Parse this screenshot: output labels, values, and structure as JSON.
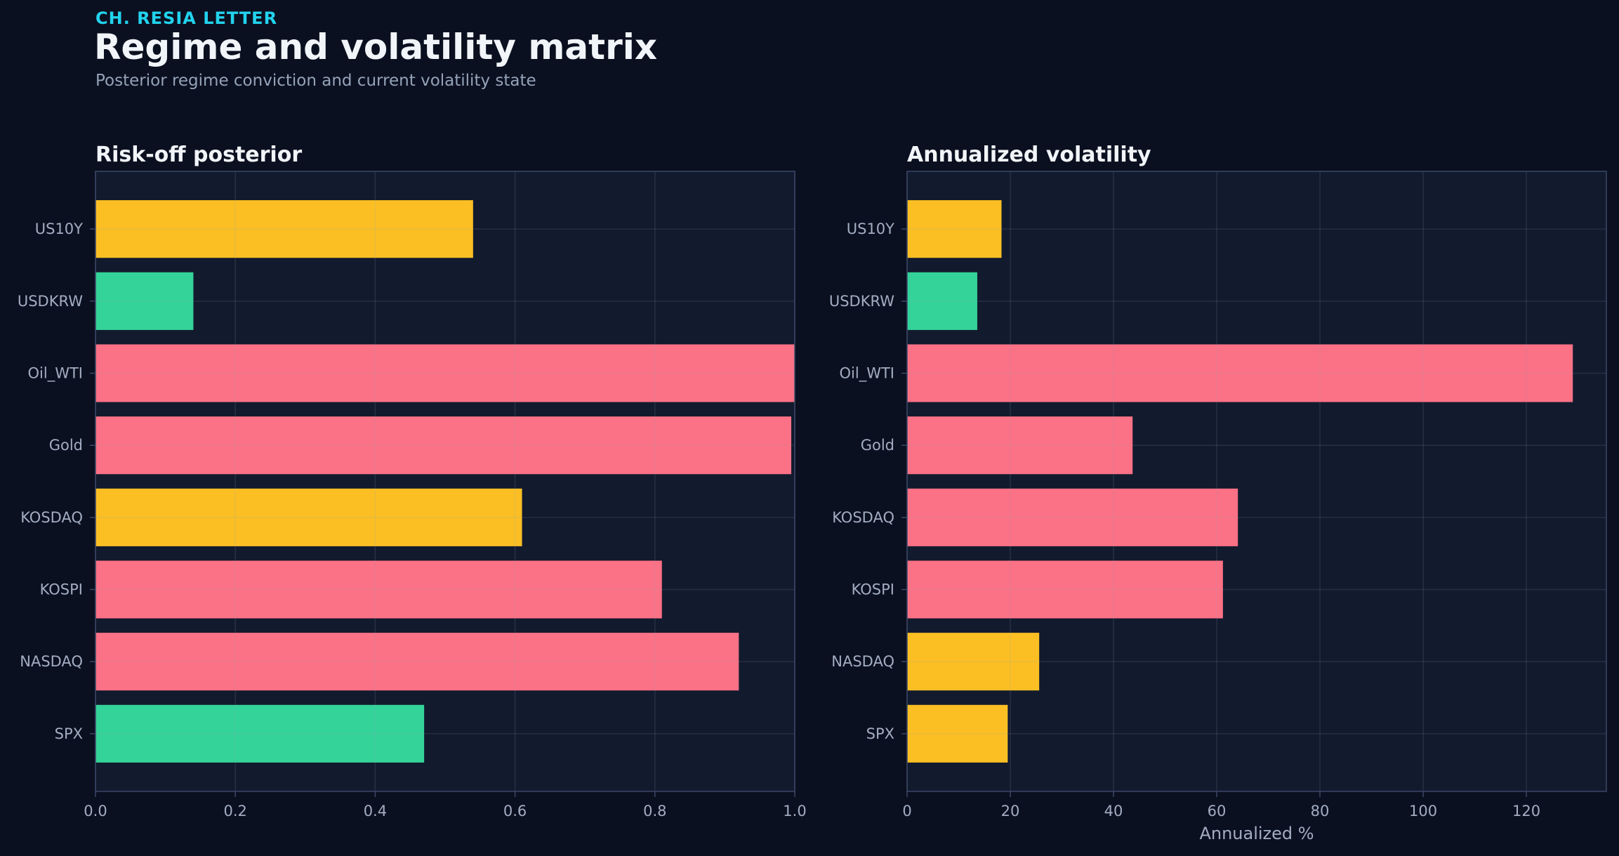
{
  "header": {
    "kicker": "CH. RESIA LETTER",
    "title": "Regime and volatility matrix",
    "subtitle": "Posterior regime conviction and current volatility state"
  },
  "colors": {
    "background": "#0b1020",
    "panel": "#121a2e",
    "risk_off": "#fb7185",
    "neutral": "#fbbf24",
    "risk_on": "#34d399",
    "accent": "#22d3ee"
  },
  "chart_data": [
    {
      "type": "bar",
      "orientation": "horizontal",
      "title": "Risk-off posterior",
      "xlabel": "",
      "ylabel": "",
      "categories": [
        "US10Y",
        "USDKRW",
        "Oil_WTI",
        "Gold",
        "KOSDAQ",
        "KOSPI",
        "NASDAQ",
        "SPX"
      ],
      "values": [
        0.54,
        0.14,
        1.0,
        0.995,
        0.61,
        0.81,
        0.92,
        0.47
      ],
      "bar_colors": [
        "#fbbf24",
        "#34d399",
        "#fb7185",
        "#fb7185",
        "#fbbf24",
        "#fb7185",
        "#fb7185",
        "#34d399"
      ],
      "xlim": [
        0,
        1.0
      ],
      "xticks": [
        0.0,
        0.2,
        0.4,
        0.6,
        0.8,
        1.0
      ],
      "xtick_labels": [
        "0.0",
        "0.2",
        "0.4",
        "0.6",
        "0.8",
        "1.0"
      ],
      "grid": true
    },
    {
      "type": "bar",
      "orientation": "horizontal",
      "title": "Annualized volatility",
      "xlabel": "Annualized %",
      "ylabel": "",
      "categories": [
        "US10Y",
        "USDKRW",
        "Oil_WTI",
        "Gold",
        "KOSDAQ",
        "KOSPI",
        "NASDAQ",
        "SPX"
      ],
      "values": [
        18.3,
        13.6,
        129.0,
        43.7,
        64.1,
        61.2,
        25.6,
        19.5
      ],
      "bar_colors": [
        "#fbbf24",
        "#34d399",
        "#fb7185",
        "#fb7185",
        "#fb7185",
        "#fb7185",
        "#fbbf24",
        "#fbbf24"
      ],
      "xlim": [
        0,
        135.5
      ],
      "xticks": [
        0,
        20,
        40,
        60,
        80,
        100,
        120
      ],
      "xtick_labels": [
        "0",
        "20",
        "40",
        "60",
        "80",
        "100",
        "120"
      ],
      "grid": true
    }
  ]
}
